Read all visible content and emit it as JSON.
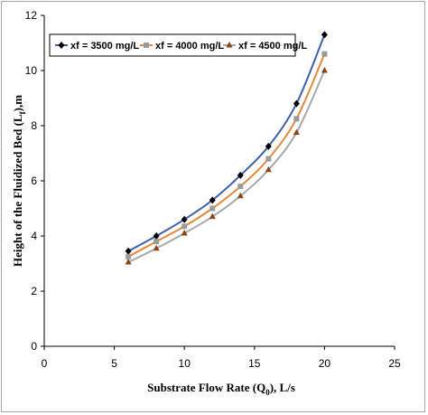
{
  "chart_data": {
    "type": "line",
    "xlabel": "Substrate Flow Rate (Q",
    "xlabel_sub": "0",
    "xlabel_suffix": "), L/s",
    "ylabel": "Height of the Fluidized Bed (L",
    "ylabel_sub": "f",
    "ylabel_suffix": "),m",
    "xlim": [
      0,
      25
    ],
    "ylim": [
      0,
      12
    ],
    "xticks": [
      0,
      5,
      10,
      15,
      20,
      25
    ],
    "yticks": [
      0,
      2,
      4,
      6,
      8,
      10,
      12
    ],
    "grid": false,
    "legend_position": "top-left",
    "x": [
      6,
      8,
      10,
      12,
      14,
      16,
      18,
      20
    ],
    "series": [
      {
        "name": "xf = 3500 mg/L",
        "color": "#3f5fa8",
        "marker": "diamond",
        "marker_color": "#000000",
        "values": [
          3.45,
          4.0,
          4.6,
          5.3,
          6.2,
          7.25,
          8.8,
          11.3
        ]
      },
      {
        "name": "xf = 4000 mg/L",
        "color": "#e8883a",
        "marker": "square",
        "marker_color": "#9b9b9b",
        "values": [
          3.25,
          3.8,
          4.35,
          5.0,
          5.8,
          6.8,
          8.25,
          10.6
        ]
      },
      {
        "name": "xf = 4500 mg/L",
        "color": "#a8a8a8",
        "marker": "triangle",
        "marker_color": "#8b4513",
        "values": [
          3.05,
          3.55,
          4.1,
          4.7,
          5.45,
          6.4,
          7.75,
          10.0
        ]
      }
    ]
  }
}
